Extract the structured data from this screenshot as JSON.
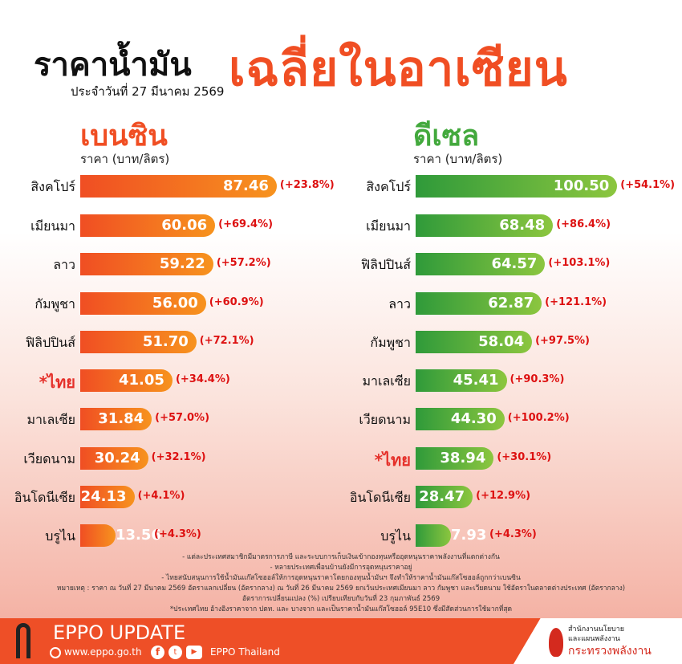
{
  "header": {
    "title_a": "ราคาน้ำมัน",
    "title_b": "เฉลี่ยในอาเซียน",
    "date": "ประจำวันที่ 27 มีนาคม 2569"
  },
  "chart_data": [
    {
      "type": "bar",
      "title": "เบนซิน",
      "unit": "ราคา (บาท/ลิตร)",
      "color": "#f04e23",
      "categories": [
        "สิงคโปร์",
        "เมียนมา",
        "ลาว",
        "กัมพูชา",
        "ฟิลิปปินส์",
        "*ไทย",
        "มาเลเซีย",
        "เวียดนาม",
        "อินโดนีเซีย",
        "บรูไน"
      ],
      "values": [
        87.46,
        60.06,
        59.22,
        56.0,
        51.7,
        41.05,
        31.84,
        30.24,
        24.13,
        13.56
      ],
      "values_text": [
        "87.46",
        "60.06",
        "59.22",
        "56.00",
        "51.70",
        "41.05",
        "31.84",
        "30.24",
        "24.13",
        "13.56"
      ],
      "change": [
        "(+23.8%)",
        "(+69.4%)",
        "(+57.2%)",
        "(+60.9%)",
        "(+72.1%)",
        "(+34.4%)",
        "(+57.0%)",
        "(+32.1%)",
        "(+4.1%)",
        "(+4.3%)"
      ]
    },
    {
      "type": "bar",
      "title": "ดีเซล",
      "unit": "ราคา (บาท/ลิตร)",
      "color": "#43a93d",
      "categories": [
        "สิงคโปร์",
        "เมียนมา",
        "ฟิลิปปินส์",
        "ลาว",
        "กัมพูชา",
        "มาเลเซีย",
        "เวียดนาม",
        "*ไทย",
        "อินโดนีเซีย",
        "บรูไน"
      ],
      "values": [
        100.5,
        68.48,
        64.57,
        62.87,
        58.04,
        45.41,
        44.3,
        38.94,
        28.47,
        7.93
      ],
      "values_text": [
        "100.50",
        "68.48",
        "64.57",
        "62.87",
        "58.04",
        "45.41",
        "44.30",
        "38.94",
        "28.47",
        "7.93"
      ],
      "change": [
        "(+54.1%)",
        "(+86.4%)",
        "(+103.1%)",
        "(+121.1%)",
        "(+97.5%)",
        "(+90.3%)",
        "(+100.2%)",
        "(+30.1%)",
        "(+12.9%)",
        "(+4.3%)"
      ]
    }
  ],
  "notes": [
    "- แต่ละประเทศสมาชิกมีมาตรการภาษี และระบบการเก็บเงินเข้ากองทุนหรืออุดหนุนราคาพลังงานที่แตกต่างกัน",
    "- หลายประเทศเพื่อนบ้านยังมีการอุดหนุนราคาอยู่",
    "- ไทยสนับสนุนการใช้น้ำมันแก๊สโซฮอล์ให้การอุดหนุนราคาโดยกองทุนน้ำมันฯ จึงทำให้ราคาน้ำมันแก๊สโซฮอล์ถูกกว่าเบนซิน",
    "หมายเหตุ : ราคา ณ วันที่ 27 มีนาคม 2569 อัตราแลกเปลี่ยน (อัตรากลาง) ณ วันที่ 26 มีนาคม 2569 ยกเว้นประเทศเมียนมา ลาว กัมพูชา และเวียดนาม ใช้อัตราในตลาดต่างประเทศ (อัตรากลาง)",
    "อัตราการเปลี่ยนแปลง (%) เปรียบเทียบกับวันที่ 23 กุมภาพันธ์ 2569",
    "*ประเทศไทย อ้างอิงราคาจาก ปตท. และ บางจาก และเป็นราคาน้ำมันแก๊สโซฮอล์ 95E10 ซึ่งมีสัดส่วนการใช้มากที่สุด"
  ],
  "footer": {
    "brand": "EPPO UPDATE",
    "website": "www.eppo.go.th",
    "social": "EPPO Thailand",
    "org_line1": "สำนักงานนโยบาย",
    "org_line2": "และแผนพลังงาน",
    "ministry": "กระทรวงพลังงาน"
  }
}
